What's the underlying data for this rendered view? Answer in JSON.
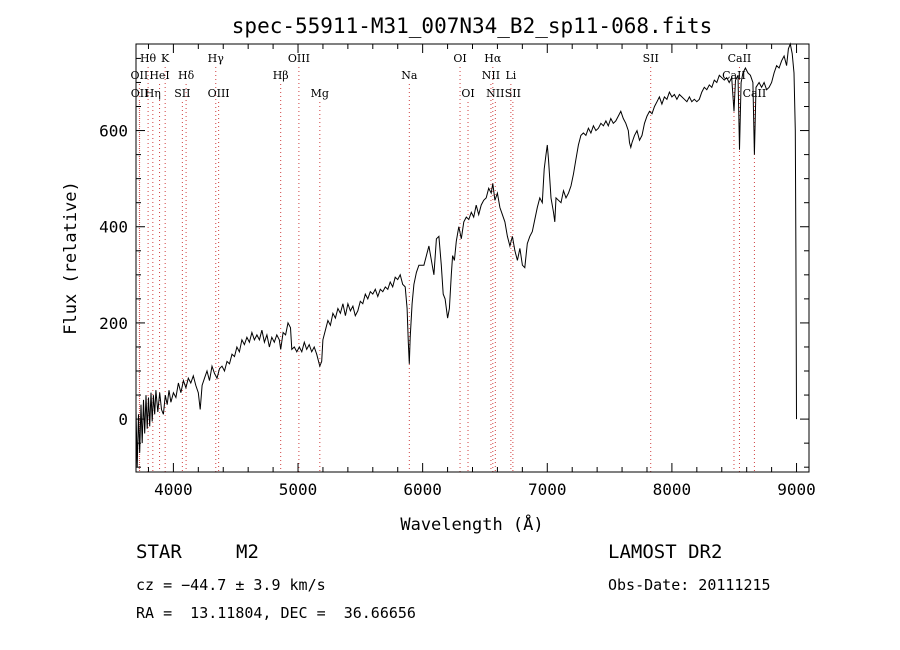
{
  "chart_data": {
    "type": "line",
    "title": "spec-55911-M31_007N34_B2_sp11-068.fits",
    "xlabel": "Wavelength (Å)",
    "ylabel": "Flux (relative)",
    "xlim": [
      3700,
      9100
    ],
    "ylim": [
      -110,
      780
    ],
    "x_ticks": [
      4000,
      5000,
      6000,
      7000,
      8000,
      9000
    ],
    "y_ticks": [
      0,
      200,
      400,
      600
    ],
    "grid": false,
    "line_color": "#000000",
    "marker_color": "#d04040",
    "line_markers": [
      {
        "label": "Hθ",
        "x": 3797,
        "row": 1
      },
      {
        "label": "K",
        "x": 3934,
        "row": 1
      },
      {
        "label": "OII",
        "x": 3727,
        "row": 2
      },
      {
        "label": "HeI",
        "x": 3889,
        "row": 2
      },
      {
        "label": "Hδ",
        "x": 4102,
        "row": 2
      },
      {
        "label": "OII",
        "x": 3729,
        "row": 3
      },
      {
        "label": "Hη",
        "x": 3835,
        "row": 3
      },
      {
        "label": "SII",
        "x": 4072,
        "row": 3
      },
      {
        "label": "Hγ",
        "x": 4340,
        "row": 1
      },
      {
        "label": "OIII",
        "x": 4363,
        "row": 3
      },
      {
        "label": "OIII",
        "x": 5007,
        "row": 1
      },
      {
        "label": "Hβ",
        "x": 4861,
        "row": 2
      },
      {
        "label": "Mg",
        "x": 5175,
        "row": 3
      },
      {
        "label": "Na",
        "x": 5893,
        "row": 2
      },
      {
        "label": "OI",
        "x": 6300,
        "row": 1
      },
      {
        "label": "OI",
        "x": 6364,
        "row": 3
      },
      {
        "label": "Hα",
        "x": 6563,
        "row": 1
      },
      {
        "label": "NII",
        "x": 6548,
        "row": 2
      },
      {
        "label": "NII",
        "x": 6583,
        "row": 3
      },
      {
        "label": "Li",
        "x": 6708,
        "row": 2
      },
      {
        "label": "SII",
        "x": 6724,
        "row": 3
      },
      {
        "label": "SII",
        "x": 7830,
        "row": 1
      },
      {
        "label": "CaII",
        "x": 8542,
        "row": 1
      },
      {
        "label": "CaII",
        "x": 8498,
        "row": 2
      },
      {
        "label": "CaII",
        "x": 8662,
        "row": 3
      }
    ],
    "series": [
      {
        "points": [
          [
            3700,
            20
          ],
          [
            3710,
            -100
          ],
          [
            3720,
            10
          ],
          [
            3730,
            -70
          ],
          [
            3740,
            30
          ],
          [
            3750,
            -50
          ],
          [
            3760,
            40
          ],
          [
            3770,
            -30
          ],
          [
            3780,
            50
          ],
          [
            3790,
            -20
          ],
          [
            3800,
            45
          ],
          [
            3810,
            -15
          ],
          [
            3820,
            55
          ],
          [
            3830,
            -5
          ],
          [
            3840,
            50
          ],
          [
            3850,
            10
          ],
          [
            3860,
            60
          ],
          [
            3875,
            15
          ],
          [
            3890,
            55
          ],
          [
            3905,
            20
          ],
          [
            3920,
            10
          ],
          [
            3935,
            50
          ],
          [
            3950,
            30
          ],
          [
            3965,
            60
          ],
          [
            3980,
            35
          ],
          [
            4000,
            55
          ],
          [
            4020,
            45
          ],
          [
            4040,
            75
          ],
          [
            4060,
            55
          ],
          [
            4080,
            80
          ],
          [
            4100,
            65
          ],
          [
            4120,
            85
          ],
          [
            4140,
            75
          ],
          [
            4160,
            90
          ],
          [
            4180,
            70
          ],
          [
            4200,
            55
          ],
          [
            4215,
            20
          ],
          [
            4230,
            70
          ],
          [
            4250,
            85
          ],
          [
            4270,
            100
          ],
          [
            4290,
            80
          ],
          [
            4310,
            110
          ],
          [
            4330,
            95
          ],
          [
            4350,
            85
          ],
          [
            4370,
            105
          ],
          [
            4390,
            110
          ],
          [
            4410,
            100
          ],
          [
            4430,
            120
          ],
          [
            4450,
            115
          ],
          [
            4470,
            135
          ],
          [
            4490,
            130
          ],
          [
            4510,
            150
          ],
          [
            4530,
            140
          ],
          [
            4550,
            165
          ],
          [
            4570,
            155
          ],
          [
            4590,
            170
          ],
          [
            4610,
            160
          ],
          [
            4630,
            180
          ],
          [
            4650,
            165
          ],
          [
            4670,
            175
          ],
          [
            4690,
            165
          ],
          [
            4710,
            185
          ],
          [
            4730,
            160
          ],
          [
            4750,
            175
          ],
          [
            4770,
            150
          ],
          [
            4790,
            170
          ],
          [
            4810,
            160
          ],
          [
            4830,
            175
          ],
          [
            4850,
            165
          ],
          [
            4861,
            145
          ],
          [
            4880,
            180
          ],
          [
            4900,
            175
          ],
          [
            4920,
            200
          ],
          [
            4940,
            190
          ],
          [
            4950,
            145
          ],
          [
            4970,
            150
          ],
          [
            4990,
            140
          ],
          [
            5010,
            150
          ],
          [
            5030,
            140
          ],
          [
            5050,
            160
          ],
          [
            5070,
            145
          ],
          [
            5090,
            155
          ],
          [
            5110,
            140
          ],
          [
            5130,
            150
          ],
          [
            5150,
            135
          ],
          [
            5175,
            110
          ],
          [
            5190,
            120
          ],
          [
            5200,
            165
          ],
          [
            5220,
            185
          ],
          [
            5240,
            205
          ],
          [
            5260,
            195
          ],
          [
            5280,
            220
          ],
          [
            5300,
            210
          ],
          [
            5320,
            230
          ],
          [
            5340,
            220
          ],
          [
            5360,
            240
          ],
          [
            5380,
            215
          ],
          [
            5400,
            240
          ],
          [
            5420,
            225
          ],
          [
            5440,
            235
          ],
          [
            5460,
            215
          ],
          [
            5480,
            225
          ],
          [
            5500,
            245
          ],
          [
            5520,
            240
          ],
          [
            5540,
            260
          ],
          [
            5560,
            250
          ],
          [
            5580,
            265
          ],
          [
            5600,
            260
          ],
          [
            5620,
            270
          ],
          [
            5640,
            255
          ],
          [
            5660,
            270
          ],
          [
            5680,
            265
          ],
          [
            5700,
            275
          ],
          [
            5720,
            270
          ],
          [
            5740,
            285
          ],
          [
            5760,
            275
          ],
          [
            5780,
            295
          ],
          [
            5800,
            290
          ],
          [
            5820,
            300
          ],
          [
            5840,
            280
          ],
          [
            5860,
            275
          ],
          [
            5875,
            230
          ],
          [
            5885,
            160
          ],
          [
            5893,
            115
          ],
          [
            5900,
            170
          ],
          [
            5915,
            240
          ],
          [
            5930,
            280
          ],
          [
            5950,
            305
          ],
          [
            5970,
            320
          ],
          [
            5990,
            320
          ],
          [
            6010,
            320
          ],
          [
            6030,
            340
          ],
          [
            6050,
            360
          ],
          [
            6070,
            330
          ],
          [
            6090,
            300
          ],
          [
            6110,
            375
          ],
          [
            6130,
            380
          ],
          [
            6150,
            320
          ],
          [
            6165,
            260
          ],
          [
            6180,
            250
          ],
          [
            6200,
            210
          ],
          [
            6215,
            230
          ],
          [
            6230,
            300
          ],
          [
            6240,
            340
          ],
          [
            6255,
            330
          ],
          [
            6270,
            370
          ],
          [
            6290,
            400
          ],
          [
            6310,
            375
          ],
          [
            6330,
            410
          ],
          [
            6350,
            420
          ],
          [
            6370,
            415
          ],
          [
            6390,
            430
          ],
          [
            6410,
            420
          ],
          [
            6430,
            445
          ],
          [
            6450,
            425
          ],
          [
            6470,
            445
          ],
          [
            6490,
            455
          ],
          [
            6510,
            460
          ],
          [
            6530,
            480
          ],
          [
            6550,
            470
          ],
          [
            6563,
            490
          ],
          [
            6580,
            455
          ],
          [
            6600,
            470
          ],
          [
            6620,
            440
          ],
          [
            6640,
            425
          ],
          [
            6660,
            410
          ],
          [
            6680,
            380
          ],
          [
            6700,
            360
          ],
          [
            6720,
            380
          ],
          [
            6740,
            350
          ],
          [
            6760,
            330
          ],
          [
            6780,
            355
          ],
          [
            6800,
            320
          ],
          [
            6820,
            315
          ],
          [
            6840,
            365
          ],
          [
            6860,
            380
          ],
          [
            6880,
            390
          ],
          [
            6900,
            415
          ],
          [
            6920,
            440
          ],
          [
            6940,
            460
          ],
          [
            6960,
            450
          ],
          [
            6975,
            520
          ],
          [
            6990,
            550
          ],
          [
            7000,
            570
          ],
          [
            7010,
            540
          ],
          [
            7030,
            460
          ],
          [
            7050,
            430
          ],
          [
            7060,
            410
          ],
          [
            7070,
            460
          ],
          [
            7090,
            455
          ],
          [
            7110,
            450
          ],
          [
            7130,
            475
          ],
          [
            7150,
            460
          ],
          [
            7170,
            470
          ],
          [
            7190,
            485
          ],
          [
            7210,
            510
          ],
          [
            7230,
            540
          ],
          [
            7250,
            570
          ],
          [
            7270,
            590
          ],
          [
            7290,
            595
          ],
          [
            7310,
            590
          ],
          [
            7330,
            605
          ],
          [
            7350,
            595
          ],
          [
            7370,
            610
          ],
          [
            7390,
            600
          ],
          [
            7410,
            605
          ],
          [
            7430,
            615
          ],
          [
            7450,
            610
          ],
          [
            7470,
            620
          ],
          [
            7490,
            610
          ],
          [
            7510,
            625
          ],
          [
            7530,
            615
          ],
          [
            7550,
            620
          ],
          [
            7570,
            630
          ],
          [
            7590,
            640
          ],
          [
            7610,
            625
          ],
          [
            7630,
            615
          ],
          [
            7650,
            600
          ],
          [
            7660,
            575
          ],
          [
            7670,
            565
          ],
          [
            7680,
            575
          ],
          [
            7700,
            590
          ],
          [
            7720,
            600
          ],
          [
            7740,
            580
          ],
          [
            7760,
            590
          ],
          [
            7780,
            615
          ],
          [
            7800,
            630
          ],
          [
            7820,
            640
          ],
          [
            7840,
            635
          ],
          [
            7860,
            650
          ],
          [
            7880,
            660
          ],
          [
            7900,
            670
          ],
          [
            7920,
            655
          ],
          [
            7940,
            670
          ],
          [
            7960,
            665
          ],
          [
            7980,
            680
          ],
          [
            8000,
            670
          ],
          [
            8020,
            675
          ],
          [
            8040,
            665
          ],
          [
            8060,
            675
          ],
          [
            8080,
            670
          ],
          [
            8100,
            665
          ],
          [
            8120,
            660
          ],
          [
            8140,
            670
          ],
          [
            8160,
            660
          ],
          [
            8180,
            665
          ],
          [
            8200,
            660
          ],
          [
            8220,
            665
          ],
          [
            8240,
            680
          ],
          [
            8260,
            690
          ],
          [
            8280,
            685
          ],
          [
            8300,
            695
          ],
          [
            8320,
            690
          ],
          [
            8340,
            705
          ],
          [
            8360,
            700
          ],
          [
            8380,
            715
          ],
          [
            8400,
            710
          ],
          [
            8420,
            705
          ],
          [
            8440,
            710
          ],
          [
            8460,
            700
          ],
          [
            8480,
            710
          ],
          [
            8498,
            640
          ],
          [
            8510,
            705
          ],
          [
            8530,
            715
          ],
          [
            8542,
            560
          ],
          [
            8555,
            700
          ],
          [
            8570,
            720
          ],
          [
            8590,
            730
          ],
          [
            8610,
            720
          ],
          [
            8630,
            715
          ],
          [
            8650,
            700
          ],
          [
            8662,
            550
          ],
          [
            8675,
            690
          ],
          [
            8700,
            700
          ],
          [
            8720,
            690
          ],
          [
            8740,
            700
          ],
          [
            8760,
            685
          ],
          [
            8780,
            690
          ],
          [
            8800,
            700
          ],
          [
            8820,
            720
          ],
          [
            8840,
            735
          ],
          [
            8860,
            730
          ],
          [
            8880,
            745
          ],
          [
            8900,
            755
          ],
          [
            8920,
            735
          ],
          [
            8935,
            770
          ],
          [
            8950,
            780
          ],
          [
            8965,
            760
          ],
          [
            8980,
            720
          ],
          [
            8990,
            600
          ],
          [
            8995,
            350
          ],
          [
            9000,
            0
          ]
        ]
      }
    ]
  },
  "info": {
    "object_class": "STAR",
    "subclass": "M2",
    "survey": "LAMOST DR2",
    "cz_text": "cz = −44.7 ± 3.9 km/s",
    "obs_date_text": "Obs-Date: 20111215",
    "radec_text": "RA =  13.11804, DEC =  36.66656"
  }
}
